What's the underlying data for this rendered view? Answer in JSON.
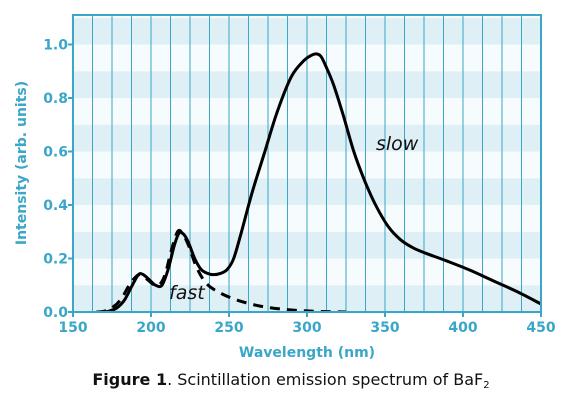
{
  "chart_data": {
    "type": "line",
    "xlabel": "Wavelength (nm)",
    "ylabel": "Intensity (arb. units)",
    "xlim": [
      150,
      450
    ],
    "ylim": [
      0,
      1.1
    ],
    "x_ticks": [
      "150",
      "200",
      "250",
      "300",
      "350",
      "400",
      "450"
    ],
    "y_ticks": [
      "0.0",
      "0.2",
      "0.4",
      "0.6",
      "0.8",
      "1.0"
    ],
    "grid": "vertical lines every 12.5 nm, alternating horizontal bands every 0.1",
    "series": [
      {
        "style": "solid",
        "points": [
          [
            170,
            0
          ],
          [
            173,
            0.003
          ],
          [
            178,
            0.015
          ],
          [
            183,
            0.045
          ],
          [
            188,
            0.1
          ],
          [
            192,
            0.14
          ],
          [
            195,
            0.14
          ],
          [
            199,
            0.12
          ],
          [
            203,
            0.1
          ],
          [
            207,
            0.1
          ],
          [
            211,
            0.16
          ],
          [
            215,
            0.25
          ],
          [
            218,
            0.295
          ],
          [
            221,
            0.29
          ],
          [
            224,
            0.26
          ],
          [
            228,
            0.2
          ],
          [
            232,
            0.16
          ],
          [
            236,
            0.145
          ],
          [
            240,
            0.14
          ],
          [
            245,
            0.145
          ],
          [
            249,
            0.16
          ],
          [
            253,
            0.2
          ],
          [
            258,
            0.3
          ],
          [
            265,
            0.45
          ],
          [
            273,
            0.6
          ],
          [
            281,
            0.75
          ],
          [
            290,
            0.88
          ],
          [
            298,
            0.94
          ],
          [
            303,
            0.96
          ],
          [
            306,
            0.965
          ],
          [
            309,
            0.955
          ],
          [
            312,
            0.92
          ],
          [
            317,
            0.85
          ],
          [
            323,
            0.74
          ],
          [
            330,
            0.6
          ],
          [
            337,
            0.49
          ],
          [
            344,
            0.4
          ],
          [
            352,
            0.32
          ],
          [
            360,
            0.27
          ],
          [
            368,
            0.24
          ],
          [
            376,
            0.22
          ],
          [
            390,
            0.19
          ],
          [
            405,
            0.155
          ],
          [
            420,
            0.115
          ],
          [
            435,
            0.075
          ],
          [
            450,
            0.03
          ]
        ]
      },
      {
        "style": "dashed",
        "points": [
          [
            165,
            0
          ],
          [
            170,
            0.003
          ],
          [
            176,
            0.02
          ],
          [
            181,
            0.05
          ],
          [
            186,
            0.1
          ],
          [
            190,
            0.13
          ],
          [
            193,
            0.14
          ],
          [
            197,
            0.125
          ],
          [
            201,
            0.105
          ],
          [
            205,
            0.1
          ],
          [
            209,
            0.14
          ],
          [
            213,
            0.23
          ],
          [
            217,
            0.3
          ],
          [
            220,
            0.295
          ],
          [
            224,
            0.25
          ],
          [
            229,
            0.17
          ],
          [
            235,
            0.11
          ],
          [
            243,
            0.075
          ],
          [
            255,
            0.045
          ],
          [
            270,
            0.022
          ],
          [
            285,
            0.01
          ],
          [
            300,
            0.004
          ],
          [
            315,
            0.001
          ],
          [
            325,
            0
          ]
        ]
      }
    ],
    "annotations": [
      {
        "text": "slow",
        "x": 348,
        "y": 0.6
      },
      {
        "text": "fast",
        "x": 222,
        "y": 0.05
      }
    ],
    "band_colors": [
      "#deeff6",
      "#f6fbfd"
    ],
    "accent_color": "#3aa6c8"
  },
  "caption": {
    "label": "Figure 1",
    "text": ". Scintillation emission spectrum of BaF",
    "subscript": "2"
  }
}
